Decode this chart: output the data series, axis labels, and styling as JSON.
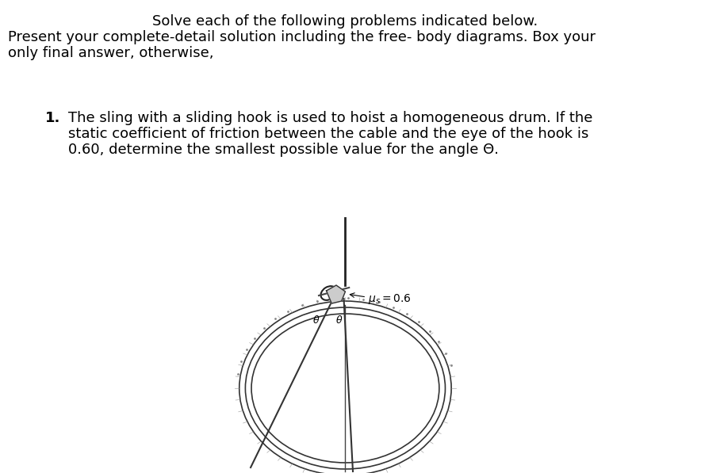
{
  "background_color": "#ffffff",
  "title_line1": "Solve each of the following problems indicated below.",
  "title_line2": "Present your complete-detail solution including the free- body diagrams. Box your",
  "title_line3": "only final answer, otherwise,",
  "problem_number": "1.",
  "problem_text_line1": "The sling with a sliding hook is used to hoist a homogeneous drum. If the",
  "problem_text_line2": "static coefficient of friction between the cable and the eye of the hook is",
  "problem_text_line3": "0.60, determine the smallest possible value for the angle Θ.",
  "mu_label": "μs = 0.6",
  "theta_label": "θ",
  "fig_width": 9.13,
  "fig_height": 5.97,
  "dpi": 100
}
